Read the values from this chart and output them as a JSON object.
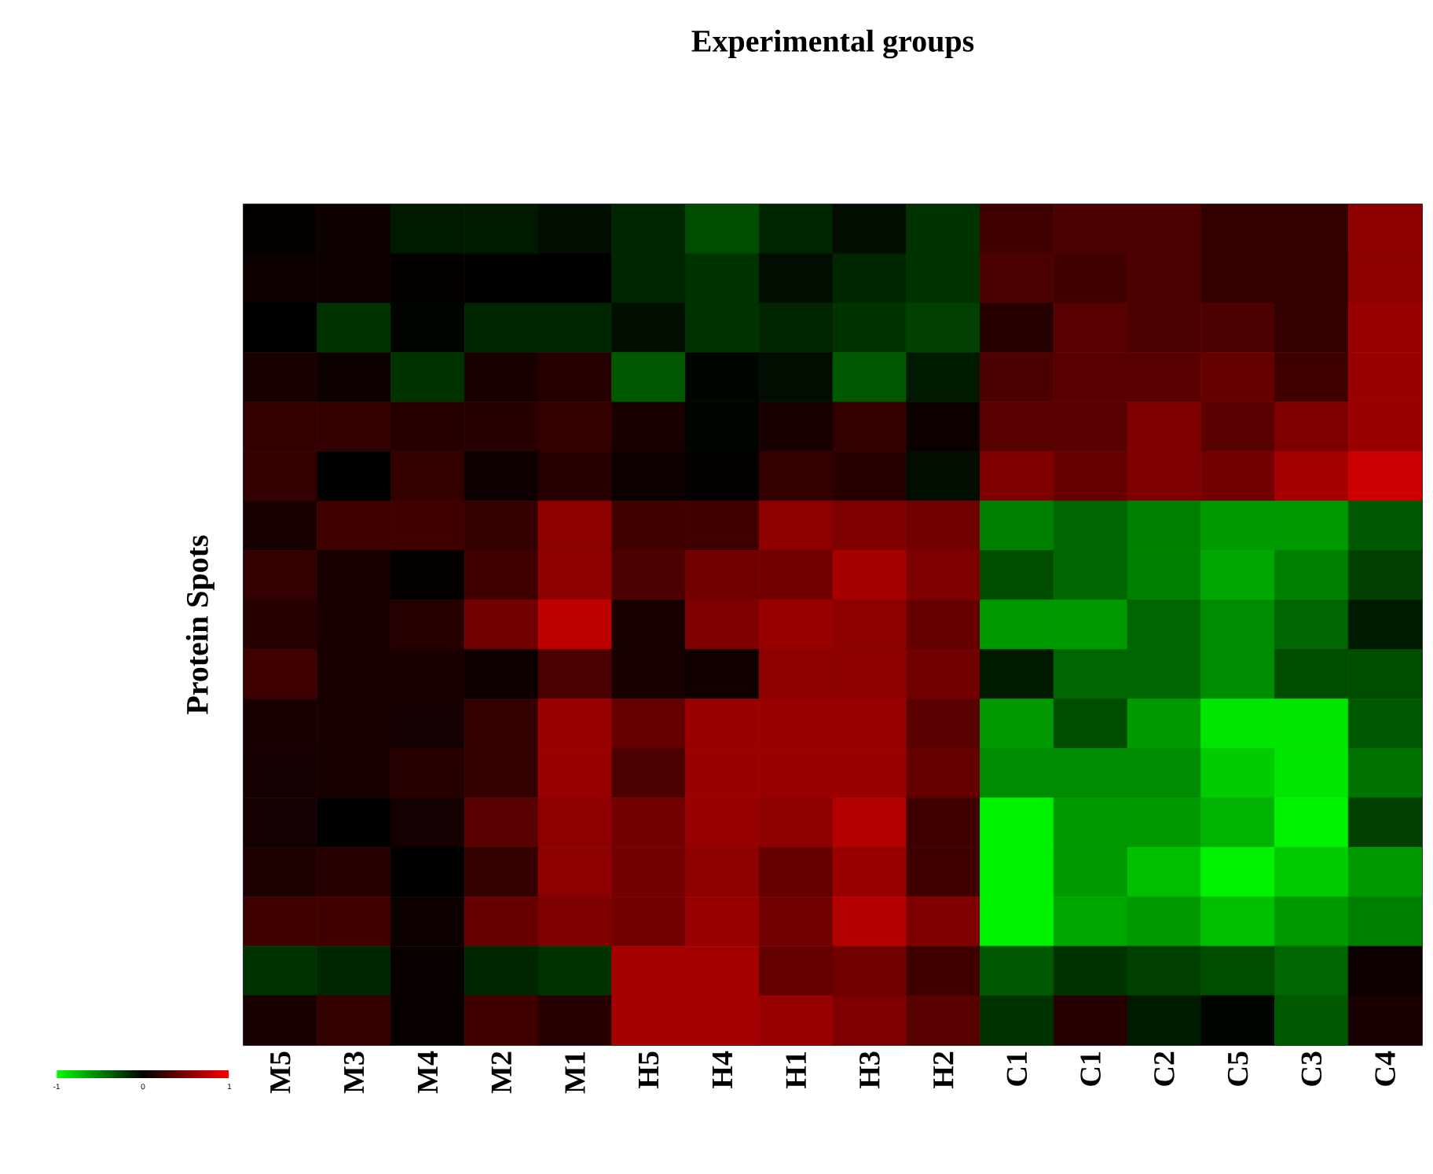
{
  "chart_data": {
    "type": "heatmap",
    "title": "Experimental groups",
    "ylabel": "Protein Spots",
    "categories": [
      "M5",
      "M3",
      "M4",
      "M2",
      "M1",
      "H5",
      "H4",
      "H1",
      "H3",
      "H2",
      "C1",
      "C1",
      "C2",
      "C5",
      "C3",
      "C4"
    ],
    "y_categories": [
      null,
      null,
      null,
      null,
      null,
      null,
      null,
      null,
      null,
      null,
      null,
      null,
      null,
      null,
      null,
      null,
      null
    ],
    "cells": [
      [
        0.02,
        0.05,
        -0.1,
        -0.1,
        -0.05,
        -0.15,
        -0.3,
        -0.15,
        -0.05,
        -0.2,
        0.25,
        0.3,
        0.3,
        0.2,
        0.2,
        0.55
      ],
      [
        0.05,
        0.05,
        0.02,
        0,
        0,
        -0.15,
        -0.2,
        -0.05,
        -0.15,
        -0.2,
        0.3,
        0.25,
        0.3,
        0.2,
        0.2,
        0.55
      ],
      [
        0,
        -0.2,
        -0.02,
        -0.15,
        -0.15,
        -0.05,
        -0.2,
        -0.15,
        -0.2,
        -0.25,
        0.15,
        0.35,
        0.3,
        0.3,
        0.2,
        0.6
      ],
      [
        0.1,
        0.05,
        -0.2,
        0.1,
        0.15,
        -0.35,
        -0.02,
        -0.05,
        -0.35,
        -0.1,
        0.3,
        0.35,
        0.35,
        0.4,
        0.25,
        0.6
      ],
      [
        0.2,
        0.2,
        0.15,
        0.15,
        0.2,
        0.1,
        -0.02,
        0.1,
        0.2,
        0.05,
        0.35,
        0.35,
        0.5,
        0.35,
        0.5,
        0.6
      ],
      [
        0.2,
        0,
        0.2,
        0.05,
        0.15,
        0.05,
        0.02,
        0.2,
        0.15,
        -0.05,
        0.5,
        0.4,
        0.5,
        0.45,
        0.65,
        0.8
      ],
      [
        0.1,
        0.25,
        0.25,
        0.2,
        0.55,
        0.25,
        0.25,
        0.55,
        0.5,
        0.45,
        -0.5,
        -0.4,
        -0.5,
        -0.6,
        -0.6,
        -0.35
      ],
      [
        0.2,
        0.1,
        0.02,
        0.25,
        0.55,
        0.3,
        0.45,
        0.45,
        0.65,
        0.5,
        -0.3,
        -0.4,
        -0.5,
        -0.65,
        -0.5,
        -0.25
      ],
      [
        0.15,
        0.1,
        0.15,
        0.45,
        0.75,
        0.1,
        0.5,
        0.6,
        0.55,
        0.4,
        -0.6,
        -0.6,
        -0.4,
        -0.55,
        -0.4,
        -0.1
      ],
      [
        0.25,
        0.1,
        0.1,
        0.05,
        0.3,
        0.1,
        0.07,
        0.55,
        0.55,
        0.45,
        -0.1,
        -0.4,
        -0.4,
        -0.55,
        -0.3,
        -0.3
      ],
      [
        0.1,
        0.1,
        0.08,
        0.2,
        0.6,
        0.4,
        0.6,
        0.6,
        0.6,
        0.35,
        -0.6,
        -0.3,
        -0.6,
        -0.9,
        -0.9,
        -0.35
      ],
      [
        0.08,
        0.1,
        0.15,
        0.2,
        0.6,
        0.3,
        0.6,
        0.6,
        0.6,
        0.4,
        -0.55,
        -0.55,
        -0.55,
        -0.8,
        -0.9,
        -0.45
      ],
      [
        0.08,
        0,
        0.08,
        0.35,
        0.55,
        0.45,
        0.6,
        0.55,
        0.7,
        0.25,
        -0.95,
        -0.6,
        -0.6,
        -0.7,
        -0.95,
        -0.25
      ],
      [
        0.12,
        0.15,
        0,
        0.2,
        0.55,
        0.45,
        0.55,
        0.4,
        0.6,
        0.25,
        -0.95,
        -0.6,
        -0.75,
        -0.95,
        -0.8,
        -0.6
      ],
      [
        0.25,
        0.25,
        0.05,
        0.4,
        0.5,
        0.45,
        0.6,
        0.45,
        0.7,
        0.5,
        -0.95,
        -0.65,
        -0.6,
        -0.75,
        -0.6,
        -0.5
      ],
      [
        -0.2,
        -0.15,
        0.03,
        -0.15,
        -0.2,
        0.65,
        0.65,
        0.4,
        0.45,
        0.25,
        -0.35,
        -0.2,
        -0.25,
        -0.3,
        -0.4,
        0.05
      ],
      [
        0.1,
        0.2,
        0.03,
        0.25,
        0.15,
        0.65,
        0.65,
        0.6,
        0.5,
        0.35,
        -0.2,
        0.15,
        -0.1,
        -0.02,
        -0.35,
        0.1
      ]
    ],
    "clim": [
      -1,
      1
    ],
    "cticks": [
      -1,
      0,
      1
    ]
  }
}
